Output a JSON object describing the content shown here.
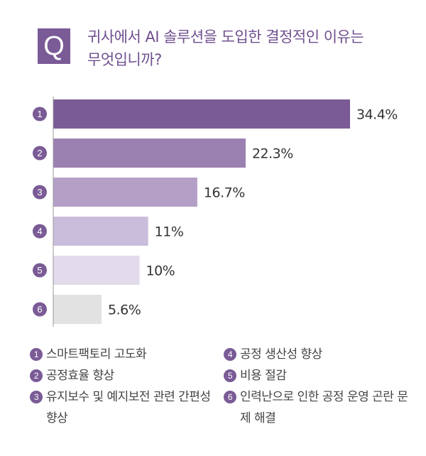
{
  "question": {
    "badge": "Q",
    "line1": "귀사에서 AI 솔루션을 도입한 결정적인 이유는",
    "line2": "무엇입니까?"
  },
  "chart_data": {
    "type": "bar",
    "orientation": "horizontal",
    "categories": [
      "1",
      "2",
      "3",
      "4",
      "5",
      "6"
    ],
    "values": [
      34.4,
      22.3,
      16.7,
      11,
      10,
      5.6
    ],
    "labels": [
      "34.4%",
      "22.3%",
      "16.7%",
      "11%",
      "10%",
      "5.6%"
    ],
    "colors": [
      "#7a5b96",
      "#9b80b2",
      "#b4a0c6",
      "#cabddb",
      "#e2dbeb",
      "#e2e2e2"
    ],
    "unit": "%",
    "grid": false
  },
  "legend": {
    "left": [
      {
        "num": "1",
        "text": "스마트팩토리 고도화"
      },
      {
        "num": "2",
        "text": "공정효율 향상"
      },
      {
        "num": "3",
        "text": "유지보수 및 예지보전 관련 간편성 향상"
      }
    ],
    "right": [
      {
        "num": "4",
        "text": "공정 생산성 향상"
      },
      {
        "num": "5",
        "text": "비용 절감"
      },
      {
        "num": "6",
        "text": "인력난으로 인한 공정 운영 곤란 문제 해결"
      }
    ]
  },
  "colors": {
    "accent": "#7a5b96",
    "question_text": "#6f4f8e",
    "axis": "#9a9a9a"
  }
}
